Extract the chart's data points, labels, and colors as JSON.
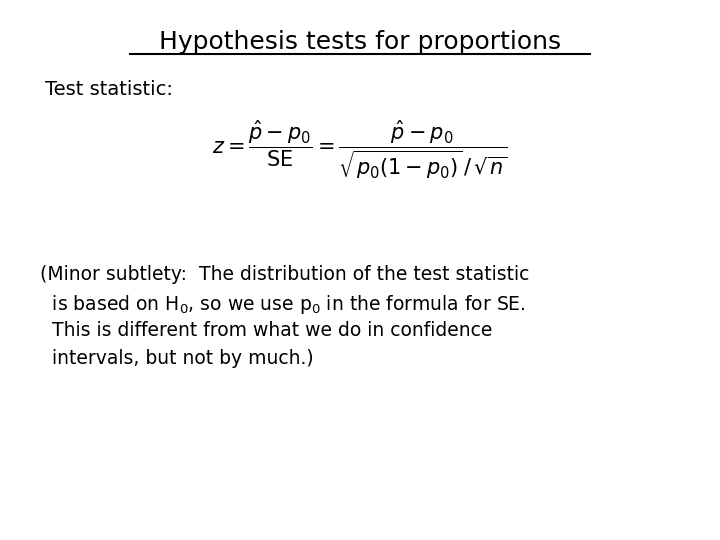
{
  "title": "Hypothesis tests for proportions",
  "background_color": "#ffffff",
  "text_color": "#000000",
  "title_fontsize": 18,
  "label_fontsize": 14,
  "note_fontsize": 13.5,
  "formula_fontsize": 14,
  "test_statistic_label": "Test statistic:",
  "note_line1": "(Minor subtlety:  The distribution of the test statistic",
  "note_line2": "  is based on H",
  "note_line2b": "0",
  "note_line2c": ", so we use p",
  "note_line2d": "0",
  "note_line2e": " in the formula for SE.",
  "note_line3": "  This is different from what we do in confidence",
  "note_line4": "  intervals, but not by much.)"
}
